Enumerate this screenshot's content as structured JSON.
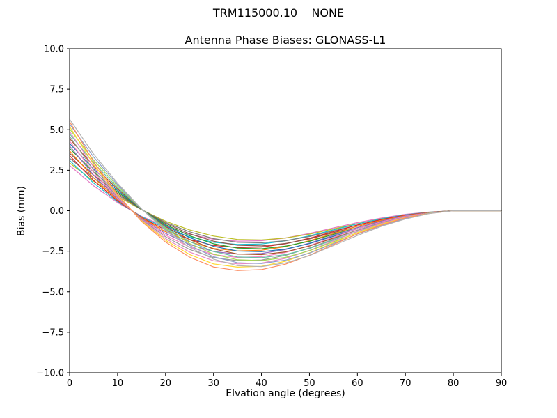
{
  "chart_data": {
    "type": "line",
    "suptitle": "TRM115000.10    NONE",
    "title": "Antenna Phase Biases: GLONASS-L1",
    "xlabel": "Elvation angle (degrees)",
    "ylabel": "Bias (mm)",
    "xlim": [
      0,
      90
    ],
    "ylim": [
      -10,
      10
    ],
    "grid": false,
    "legend": "none",
    "xticks": [
      0,
      10,
      20,
      30,
      40,
      50,
      60,
      70,
      80,
      90
    ],
    "xtick_labels": [
      "0",
      "10",
      "20",
      "30",
      "40",
      "50",
      "60",
      "70",
      "80",
      "90"
    ],
    "yticks": [
      10,
      7.5,
      5,
      2.5,
      0,
      -2.5,
      -5,
      -7.5,
      -10
    ],
    "ytick_labels": [
      "10.0",
      "7.5",
      "5.0",
      "2.5",
      "0.0",
      "−2.5",
      "−5.0",
      "−7.5",
      "−10.0"
    ],
    "x": [
      0,
      5,
      10,
      15,
      20,
      25,
      30,
      35,
      40,
      45,
      50,
      55,
      60,
      65,
      70,
      75,
      80,
      85,
      90
    ],
    "series": [
      {
        "color": "#e377c2",
        "values": [
          2.8,
          1.54,
          0.5,
          -0.34,
          -0.98,
          -1.46,
          -1.76,
          -1.88,
          -1.85,
          -1.68,
          -1.4,
          -1.06,
          -0.73,
          -0.45,
          -0.22,
          -0.08,
          0,
          0,
          0
        ]
      },
      {
        "color": "#bcbd22",
        "values": [
          2.95,
          1.83,
          0.89,
          0.06,
          -0.65,
          -1.18,
          -1.56,
          -1.77,
          -1.8,
          -1.68,
          -1.45,
          -1.12,
          -0.8,
          -0.5,
          -0.27,
          -0.09,
          0,
          0,
          0
        ]
      },
      {
        "color": "#17becf",
        "values": [
          3.1,
          1.71,
          0.56,
          -0.37,
          -1.09,
          -1.61,
          -1.95,
          -2.08,
          -2.05,
          -1.86,
          -1.55,
          -1.18,
          -0.81,
          -0.5,
          -0.25,
          -0.09,
          0,
          0,
          0
        ]
      },
      {
        "color": "#7f7f7f",
        "values": [
          3.25,
          2.02,
          0.98,
          0.07,
          -0.72,
          -1.3,
          -1.72,
          -1.95,
          -1.98,
          -1.85,
          -1.59,
          -1.24,
          -0.88,
          -0.55,
          -0.29,
          -0.1,
          0,
          0,
          0
        ]
      },
      {
        "color": "#d62728",
        "values": [
          3.4,
          1.87,
          0.61,
          -0.41,
          -1.19,
          -1.77,
          -2.14,
          -2.28,
          -2.24,
          -2.04,
          -1.7,
          -1.29,
          -0.88,
          -0.54,
          -0.27,
          -0.1,
          0,
          0,
          0
        ]
      },
      {
        "color": "#8c564b",
        "values": [
          3.55,
          2.2,
          1.07,
          0.07,
          -0.78,
          -1.42,
          -1.88,
          -2.13,
          -2.17,
          -2.02,
          -1.74,
          -1.35,
          -0.96,
          -0.6,
          -0.32,
          -0.11,
          0,
          0,
          0
        ]
      },
      {
        "color": "#ff7f0e",
        "values": [
          3.7,
          2.04,
          0.67,
          -0.44,
          -1.3,
          -1.92,
          -2.33,
          -2.48,
          -2.44,
          -2.22,
          -1.85,
          -1.41,
          -0.96,
          -0.59,
          -0.3,
          -0.11,
          0,
          0,
          0
        ]
      },
      {
        "color": "#2ca02c",
        "values": [
          3.85,
          2.39,
          1.16,
          0.08,
          -0.85,
          -1.54,
          -2.04,
          -2.31,
          -2.35,
          -2.19,
          -1.89,
          -1.46,
          -1.04,
          -0.65,
          -0.35,
          -0.12,
          0,
          0,
          0
        ]
      },
      {
        "color": "#9467bd",
        "values": [
          4,
          2.2,
          0.72,
          -0.48,
          -1.4,
          -2.08,
          -2.52,
          -2.68,
          -2.64,
          -2.4,
          -2,
          -1.52,
          -1.04,
          -0.64,
          -0.32,
          -0.12,
          0,
          0,
          0
        ]
      },
      {
        "color": "#1f77b4",
        "values": [
          4.15,
          2.57,
          1.25,
          0.08,
          -0.91,
          -1.66,
          -2.2,
          -2.49,
          -2.53,
          -2.37,
          -2.03,
          -1.58,
          -1.12,
          -0.71,
          -0.37,
          -0.12,
          0,
          0,
          0
        ]
      },
      {
        "color": "#f781bf",
        "values": [
          4.3,
          2.37,
          0.77,
          -0.52,
          -1.51,
          -2.24,
          -2.71,
          -2.88,
          -2.84,
          -2.58,
          -2.15,
          -1.63,
          -1.12,
          -0.69,
          -0.34,
          -0.13,
          0,
          0,
          0
        ]
      },
      {
        "color": "#a65628",
        "values": [
          4.45,
          2.76,
          1.34,
          0.09,
          -0.98,
          -1.78,
          -2.36,
          -2.67,
          -2.71,
          -2.54,
          -2.18,
          -1.69,
          -1.2,
          -0.76,
          -0.4,
          -0.13,
          0,
          0,
          0
        ]
      },
      {
        "color": "#999999",
        "values": [
          4.6,
          2.53,
          0.83,
          -0.55,
          -1.61,
          -2.39,
          -2.9,
          -3.08,
          -3.04,
          -2.76,
          -2.3,
          -1.75,
          -1.2,
          -0.74,
          -0.37,
          -0.14,
          0,
          0,
          0
        ]
      },
      {
        "color": "#66c2a5",
        "values": [
          4.75,
          2.95,
          1.43,
          0.1,
          -1.05,
          -1.9,
          -2.52,
          -2.85,
          -2.9,
          -2.71,
          -2.33,
          -1.81,
          -1.28,
          -0.81,
          -0.43,
          -0.14,
          0,
          0,
          0
        ]
      },
      {
        "color": "#e78ac3",
        "values": [
          4.9,
          2.7,
          0.88,
          -0.59,
          -1.72,
          -2.55,
          -3.09,
          -3.28,
          -3.23,
          -2.94,
          -2.45,
          -1.86,
          -1.27,
          -0.78,
          -0.39,
          -0.15,
          0,
          0,
          0
        ]
      },
      {
        "color": "#a6d854",
        "values": [
          5.05,
          3.13,
          1.52,
          0.1,
          -1.11,
          -2.02,
          -2.68,
          -3.03,
          -3.08,
          -2.88,
          -2.47,
          -1.92,
          -1.36,
          -0.86,
          -0.45,
          -0.15,
          0,
          0,
          0
        ]
      },
      {
        "color": "#ffd92f",
        "values": [
          5.2,
          2.86,
          0.94,
          -0.62,
          -1.82,
          -2.7,
          -3.28,
          -3.48,
          -3.43,
          -3.12,
          -2.6,
          -1.98,
          -1.35,
          -0.83,
          -0.42,
          -0.16,
          0,
          0,
          0
        ]
      },
      {
        "color": "#8da0cb",
        "values": [
          5.35,
          3.32,
          1.61,
          0.11,
          -1.18,
          -2.14,
          -2.84,
          -3.21,
          -3.26,
          -3.05,
          -2.62,
          -2.03,
          -1.44,
          -0.91,
          -0.48,
          -0.16,
          0,
          0,
          0
        ]
      },
      {
        "color": "#fc8d62",
        "values": [
          5.5,
          3.03,
          0.99,
          -0.66,
          -1.93,
          -2.86,
          -3.47,
          -3.69,
          -3.63,
          -3.3,
          -2.75,
          -2.09,
          -1.43,
          -0.88,
          -0.44,
          -0.17,
          0,
          0,
          0
        ]
      },
      {
        "color": "#b3b3b3",
        "values": [
          5.65,
          3.5,
          1.7,
          0.11,
          -1.24,
          -2.26,
          -2.99,
          -3.39,
          -3.45,
          -3.22,
          -2.77,
          -2.15,
          -1.53,
          -0.96,
          -0.51,
          -0.17,
          0,
          0,
          0
        ]
      }
    ]
  }
}
